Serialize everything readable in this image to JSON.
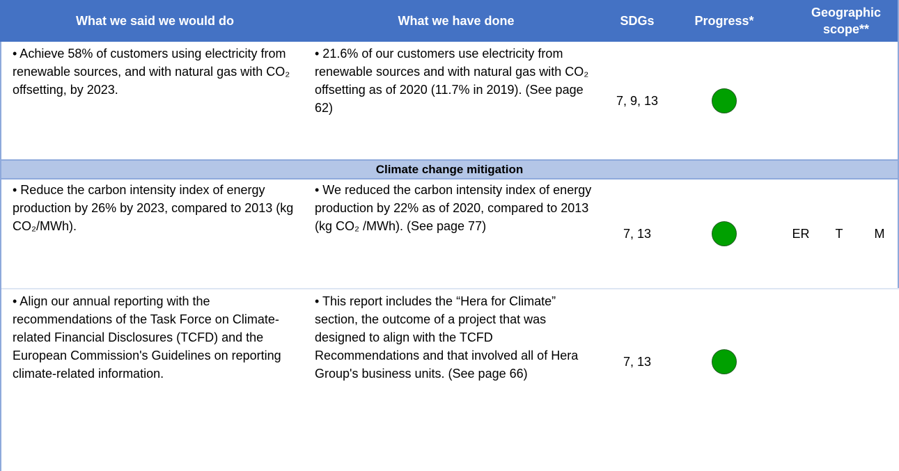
{
  "table": {
    "header": [
      "What we said we would do",
      "What we have done",
      "SDGs",
      "Progress*",
      "Geographic scope**"
    ],
    "rows": [
      {
        "said": "• Achieve 58% of customers using electricity from renewable sources, and with natural gas with CO₂ offsetting, by 2023.",
        "done": "• 21.6% of our customers use electricity from renewable sources and with natural gas with CO₂ offsetting as of 2020 (11.7% in 2019). (See page 62)",
        "sdgs": "7, 9, 13"
      },
      {
        "said": "• Reduce the carbon intensity index of energy production by 26% by 2023, compared to 2013 (kg CO₂/MWh).",
        "done": "• We reduced the carbon intensity index of energy production by 22% as of 2020, compared to 2013 (kg CO₂ /MWh). (See page 77)",
        "sdgs": "7, 13",
        "scope": [
          "ER",
          "T",
          "M"
        ]
      },
      {
        "said": "• Align our annual reporting with the recommendations of the Task Force on Climate-related Financial Disclosures (TCFD) and the European Commission's Guidelines on reporting climate-related information.",
        "done": "• This report includes the “Hera for Climate” section, the outcome of a project that was designed to align with the TCFD Recommendations and that involved all of Hera Group's business units. (See page 66)",
        "sdgs": "7, 13"
      }
    ],
    "section": "Climate change mitigation"
  }
}
